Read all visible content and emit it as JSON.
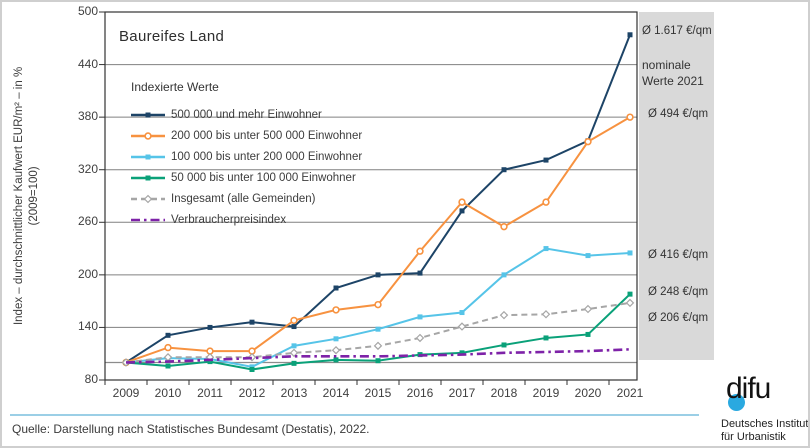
{
  "chart_data": {
    "type": "line",
    "title": "Baureifes Land",
    "legend_title": "Indexierte Werte",
    "ylabel_line1": "Index – durchschnittlicher Kaufwert EUR/m² – in %",
    "ylabel_line2": "(2009=100)",
    "x": [
      "2009",
      "2010",
      "2011",
      "2012",
      "2013",
      "2014",
      "2015",
      "2016",
      "2017",
      "2018",
      "2019",
      "2020",
      "2021"
    ],
    "ylim": [
      80,
      500
    ],
    "y_ticks": [
      80,
      140,
      200,
      260,
      320,
      380,
      440,
      500
    ],
    "baseline": 100,
    "grid": "horizontal",
    "legend_position": "inside-top-left",
    "series": [
      {
        "name": "500 000 und mehr Einwohner",
        "color": "#1d4467",
        "dash": "solid",
        "marker": "square",
        "values": [
          100,
          131,
          140,
          146,
          141,
          185,
          200,
          202,
          273,
          320,
          331,
          353,
          474
        ]
      },
      {
        "name": "200 000 bis unter 500 000 Einwohner",
        "color": "#f79240",
        "dash": "solid",
        "marker": "circle-open",
        "values": [
          100,
          117,
          113,
          113,
          148,
          160,
          166,
          227,
          283,
          255,
          283,
          352,
          380
        ]
      },
      {
        "name": "100 000 bis unter 200 000 Einwohner",
        "color": "#56c4e8",
        "dash": "solid",
        "marker": "square",
        "values": [
          100,
          105,
          104,
          95,
          119,
          127,
          138,
          152,
          157,
          200,
          230,
          222,
          225
        ]
      },
      {
        "name": "50 000 bis unter 100 000 Einwohner",
        "color": "#0aa179",
        "dash": "solid",
        "marker": "square",
        "values": [
          100,
          96,
          101,
          92,
          99,
          103,
          102,
          109,
          111,
          120,
          128,
          132,
          178
        ]
      },
      {
        "name": "Insgesamt (alle Gemeinden)",
        "color": "#a6a6a6",
        "dash": "dashed",
        "marker": "diamond-open",
        "values": [
          100,
          106,
          106,
          106,
          111,
          114,
          119,
          128,
          141,
          154,
          155,
          161,
          168
        ]
      },
      {
        "name": "Verbraucherpreisindex",
        "color": "#7e22a8",
        "dash": "dashdot",
        "marker": "none",
        "values": [
          100,
          101,
          103,
          105,
          107,
          107,
          107,
          108,
          109,
          111,
          112,
          113,
          115
        ]
      }
    ]
  },
  "side_panel": {
    "header": "nominale Werte 2021",
    "values": [
      "Ø 1.617 €/qm",
      "Ø 494 €/qm",
      "Ø 416 €/qm",
      "Ø 248 €/qm",
      "Ø 206 €/qm"
    ]
  },
  "footer": {
    "source": "Quelle: Darstellung nach Statistisches Bundesamt (Destatis), 2022.",
    "logo_text": "difu",
    "institute_line1": "Deutsches Institut",
    "institute_line2": "für Urbanistik"
  }
}
